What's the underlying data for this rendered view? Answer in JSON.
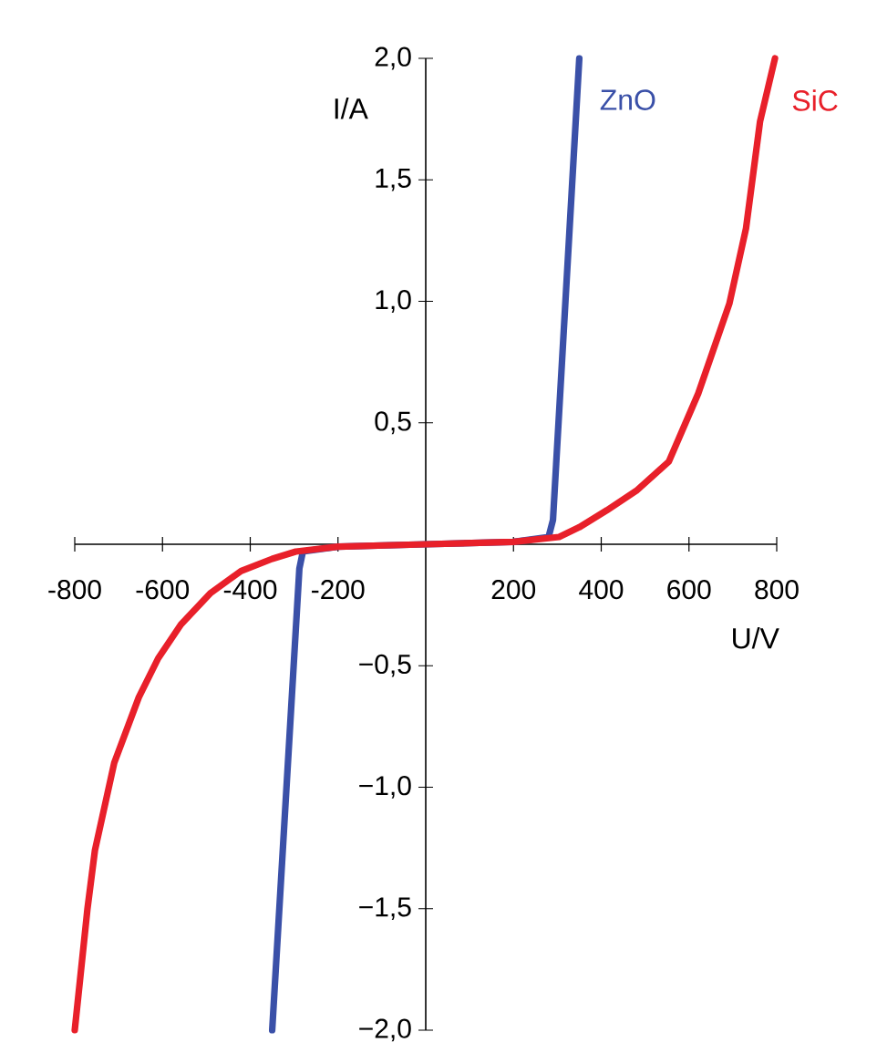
{
  "chart_data": {
    "type": "line",
    "xlabel": "U/V",
    "ylabel": "I/A",
    "xlim": [
      -800,
      800
    ],
    "ylim": [
      -2.0,
      2.0
    ],
    "xticks": [
      -800,
      -600,
      -400,
      -200,
      200,
      400,
      600,
      800
    ],
    "yticks": [
      {
        "value": -2.0,
        "label": "−2,0"
      },
      {
        "value": -1.5,
        "label": "−1,5"
      },
      {
        "value": -1.0,
        "label": "−1,0"
      },
      {
        "value": -0.5,
        "label": "−0,5"
      },
      {
        "value": 0.5,
        "label": "0,5"
      },
      {
        "value": 1.0,
        "label": "1,0"
      },
      {
        "value": 1.5,
        "label": "1,5"
      },
      {
        "value": 2.0,
        "label": "2,0"
      }
    ],
    "grid": false,
    "legend": false,
    "marker": "none",
    "line_style": "solid",
    "series": [
      {
        "name": "ZnO",
        "color": "#3a50a8",
        "x": [
          -350,
          -288,
          -280,
          -200,
          0,
          200,
          280,
          290,
          350
        ],
        "values": [
          -2.0,
          -0.1,
          -0.03,
          -0.01,
          0.0,
          0.01,
          0.03,
          0.1,
          2.0
        ]
      },
      {
        "name": "SiC",
        "color": "#e8202a",
        "x": [
          -800,
          -771,
          -754,
          -710,
          -654,
          -610,
          -558,
          -490,
          -421,
          -350,
          -296,
          -200,
          0,
          200,
          304,
          350,
          413,
          480,
          554,
          621,
          692,
          730,
          762,
          796
        ],
        "values": [
          -2.0,
          -1.5,
          -1.26,
          -0.9,
          -0.63,
          -0.47,
          -0.33,
          -0.2,
          -0.11,
          -0.06,
          -0.03,
          -0.01,
          0.0,
          0.01,
          0.03,
          0.07,
          0.14,
          0.22,
          0.34,
          0.62,
          0.99,
          1.3,
          1.74,
          2.0
        ]
      }
    ]
  }
}
